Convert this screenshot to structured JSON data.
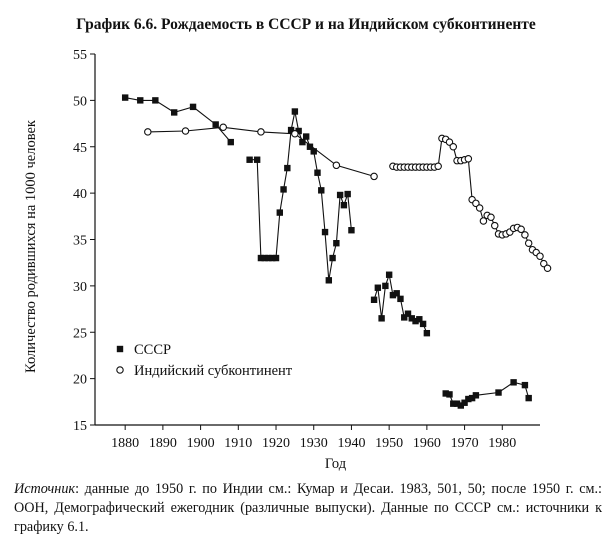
{
  "chart_data": {
    "type": "scatter",
    "title": "График 6.6. Рождаемость в СССР и на Индийском субконтиненте",
    "xlabel": "Год",
    "ylabel": "Количество родившихся на 1000 человек",
    "xlim": [
      1872,
      1990
    ],
    "ylim": [
      15,
      55
    ],
    "xticks": [
      1880,
      1890,
      1900,
      1910,
      1920,
      1930,
      1940,
      1950,
      1960,
      1970,
      1980
    ],
    "yticks": [
      15,
      20,
      25,
      30,
      35,
      40,
      45,
      50,
      55
    ],
    "legend_position": "middle-left",
    "series": [
      {
        "name": "СССР",
        "marker": "filled-square",
        "segments": [
          [
            [
              1880,
              50.3
            ],
            [
              1884,
              50.0
            ],
            [
              1888,
              50.0
            ],
            [
              1893,
              48.7
            ],
            [
              1898,
              49.3
            ],
            [
              1904,
              47.4
            ],
            [
              1908,
              45.5
            ]
          ],
          [
            [
              1913,
              43.6
            ],
            [
              1915,
              43.6
            ],
            [
              1916,
              33.0
            ],
            [
              1917,
              33.0
            ],
            [
              1918,
              33.0
            ],
            [
              1919,
              33.0
            ],
            [
              1920,
              33.0
            ],
            [
              1921,
              37.9
            ],
            [
              1922,
              40.4
            ],
            [
              1923,
              42.7
            ],
            [
              1924,
              46.8
            ],
            [
              1925,
              48.8
            ],
            [
              1926,
              46.7
            ],
            [
              1927,
              45.5
            ],
            [
              1928,
              46.1
            ],
            [
              1929,
              45.0
            ],
            [
              1930,
              44.5
            ],
            [
              1931,
              42.2
            ],
            [
              1932,
              40.3
            ],
            [
              1933,
              35.8
            ],
            [
              1934,
              30.6
            ],
            [
              1935,
              33.0
            ],
            [
              1936,
              34.6
            ],
            [
              1937,
              39.8
            ],
            [
              1938,
              38.7
            ],
            [
              1939,
              39.9
            ],
            [
              1940,
              36.0
            ]
          ],
          [
            [
              1946,
              28.5
            ],
            [
              1947,
              29.8
            ],
            [
              1948,
              26.5
            ],
            [
              1949,
              30.0
            ],
            [
              1950,
              31.2
            ],
            [
              1951,
              29.0
            ],
            [
              1952,
              29.2
            ],
            [
              1953,
              28.6
            ],
            [
              1954,
              26.6
            ],
            [
              1955,
              27.0
            ],
            [
              1956,
              26.5
            ],
            [
              1957,
              26.2
            ],
            [
              1958,
              26.4
            ],
            [
              1959,
              25.9
            ],
            [
              1960,
              24.9
            ]
          ],
          [
            [
              1965,
              18.4
            ],
            [
              1966,
              18.3
            ],
            [
              1967,
              17.3
            ],
            [
              1968,
              17.3
            ],
            [
              1969,
              17.1
            ],
            [
              1970,
              17.4
            ],
            [
              1971,
              17.8
            ],
            [
              1972,
              17.9
            ],
            [
              1973,
              18.2
            ],
            [
              1979,
              18.5
            ],
            [
              1983,
              19.6
            ],
            [
              1986,
              19.3
            ],
            [
              1987,
              17.9
            ]
          ]
        ]
      },
      {
        "name": "Индийский субконтинент",
        "marker": "open-circle",
        "segments": [
          [
            [
              1886,
              46.6
            ],
            [
              1896,
              46.7
            ],
            [
              1906,
              47.1
            ],
            [
              1916,
              46.6
            ],
            [
              1925,
              46.4
            ],
            [
              1936,
              43.0
            ],
            [
              1946,
              41.8
            ]
          ],
          [
            [
              1951,
              42.9
            ],
            [
              1952,
              42.8
            ],
            [
              1953,
              42.8
            ],
            [
              1954,
              42.8
            ],
            [
              1955,
              42.8
            ],
            [
              1956,
              42.8
            ],
            [
              1957,
              42.8
            ],
            [
              1958,
              42.8
            ],
            [
              1959,
              42.8
            ],
            [
              1960,
              42.8
            ],
            [
              1961,
              42.8
            ],
            [
              1962,
              42.8
            ],
            [
              1963,
              42.9
            ],
            [
              1964,
              45.9
            ],
            [
              1965,
              45.8
            ],
            [
              1966,
              45.5
            ],
            [
              1967,
              45.0
            ],
            [
              1968,
              43.5
            ],
            [
              1969,
              43.5
            ],
            [
              1970,
              43.6
            ],
            [
              1971,
              43.7
            ],
            [
              1972,
              39.3
            ],
            [
              1973,
              38.9
            ],
            [
              1974,
              38.4
            ],
            [
              1975,
              37.0
            ],
            [
              1976,
              37.6
            ],
            [
              1977,
              37.4
            ],
            [
              1978,
              36.5
            ],
            [
              1979,
              35.6
            ],
            [
              1980,
              35.5
            ],
            [
              1981,
              35.6
            ],
            [
              1982,
              35.8
            ],
            [
              1983,
              36.2
            ],
            [
              1984,
              36.3
            ],
            [
              1985,
              36.1
            ],
            [
              1986,
              35.5
            ],
            [
              1987,
              34.6
            ],
            [
              1988,
              33.9
            ],
            [
              1989,
              33.6
            ],
            [
              1990,
              33.2
            ],
            [
              1991,
              32.4
            ],
            [
              1992,
              31.9
            ]
          ]
        ]
      }
    ]
  },
  "caption": {
    "source_label": "Источник",
    "text": ": данные до 1950 г. по Индии см.: Кумар и Десаи. 1983, 501, 50; после 1950 г. см.: ООН, Демографический ежегодник (различные выпуски). Данные по СССР см.: источники к графику 6.1."
  }
}
